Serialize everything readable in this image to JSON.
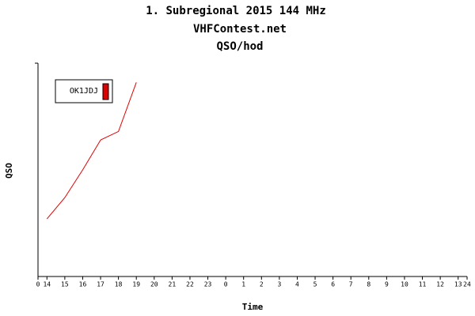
{
  "chart_data": {
    "type": "line",
    "title": "1. Subregional 2015 144 MHz",
    "subtitle": "VHFContest.net",
    "subtitle2": "QSO/hod",
    "x_label": "Time",
    "y_label": "QSO",
    "x": [
      0.5,
      1.5,
      2.5,
      3.5,
      4.5,
      5.5
    ],
    "series": [
      {
        "name": "OK1JDJ",
        "color": "#e00000",
        "values": [
          27,
          37,
          50,
          64,
          68,
          91
        ]
      }
    ],
    "xlim": [
      0,
      24
    ],
    "ylim": [
      0,
      100
    ],
    "xticks": [
      0,
      {
        "value": 0.5,
        "label": "14"
      },
      {
        "value": 1.5,
        "label": "15"
      },
      {
        "value": 2.5,
        "label": "16"
      },
      {
        "value": 3.5,
        "label": "17"
      },
      {
        "value": 4.5,
        "label": "18"
      },
      {
        "value": 5.5,
        "label": "19"
      },
      {
        "value": 6.5,
        "label": "20"
      },
      {
        "value": 7.5,
        "label": "21"
      },
      {
        "value": 8.5,
        "label": "22"
      },
      {
        "value": 9.5,
        "label": "23"
      },
      {
        "value": 10.5,
        "label": "0"
      },
      {
        "value": 11.5,
        "label": "1"
      },
      {
        "value": 12.5,
        "label": "2"
      },
      {
        "value": 13.5,
        "label": "3"
      },
      {
        "value": 14.5,
        "label": "4"
      },
      {
        "value": 15.5,
        "label": "5"
      },
      {
        "value": 16.5,
        "label": "6"
      },
      {
        "value": 17.5,
        "label": "7"
      },
      {
        "value": 18.5,
        "label": "8"
      },
      {
        "value": 19.5,
        "label": "9"
      },
      {
        "value": 20.5,
        "label": "10"
      },
      {
        "value": 21.5,
        "label": "11"
      },
      {
        "value": 22.5,
        "label": "12"
      },
      {
        "value": 23.5,
        "label": "13"
      },
      24
    ],
    "legend": "upper left"
  }
}
